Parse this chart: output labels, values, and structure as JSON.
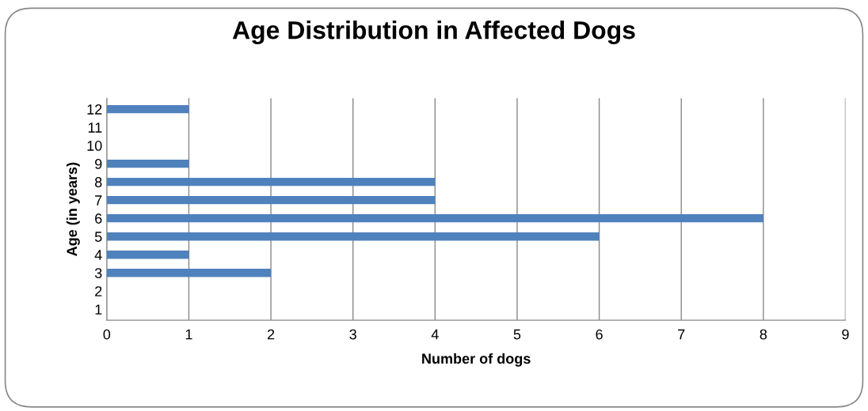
{
  "chart_data": {
    "type": "bar",
    "orientation": "horizontal",
    "title": "Age Distribution in Affected Dogs",
    "xlabel": "Number of dogs",
    "ylabel": "Age (in years)",
    "categories": [
      "12",
      "11",
      "10",
      "9",
      "8",
      "7",
      "6",
      "5",
      "4",
      "3",
      "2",
      "1"
    ],
    "values": [
      1,
      0,
      0,
      1,
      4,
      4,
      8,
      6,
      1,
      2,
      0,
      0
    ],
    "color": "#4f81bd",
    "xlim": [
      0,
      9
    ],
    "xticks": [
      0,
      1,
      2,
      3,
      4,
      5,
      6,
      7,
      8,
      9
    ],
    "grid": "x",
    "legend": false
  }
}
